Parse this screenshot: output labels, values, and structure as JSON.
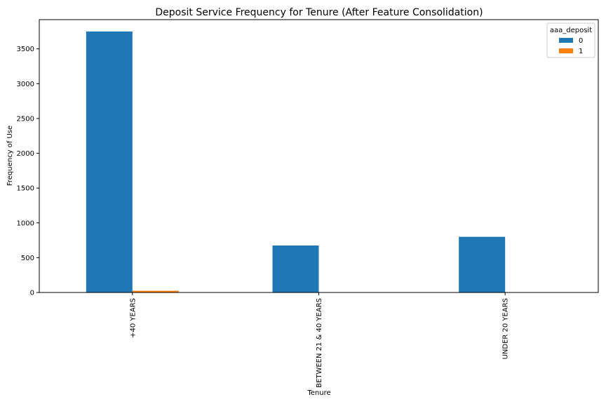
{
  "chart_data": {
    "type": "bar",
    "title": "Deposit Service Frequency for Tenure (After Feature Consolidation)",
    "xlabel": "Tenure",
    "ylabel": "Frequency of Use",
    "categories": [
      "+40 YEARS",
      "BETWEEN 21 & 40 YEARS",
      "UNDER 20 YEARS"
    ],
    "series": [
      {
        "name": "0",
        "values": [
          3750,
          675,
          800
        ],
        "color": "#1f77b4"
      },
      {
        "name": "1",
        "values": [
          25,
          0,
          0
        ],
        "color": "#ff7f0e"
      }
    ],
    "ylim": [
      0,
      3920
    ],
    "yticks": [
      0,
      500,
      1000,
      1500,
      2000,
      2500,
      3000,
      3500
    ],
    "grid": false,
    "legend": {
      "title": "aaa_deposit",
      "placement": "top-right"
    }
  }
}
